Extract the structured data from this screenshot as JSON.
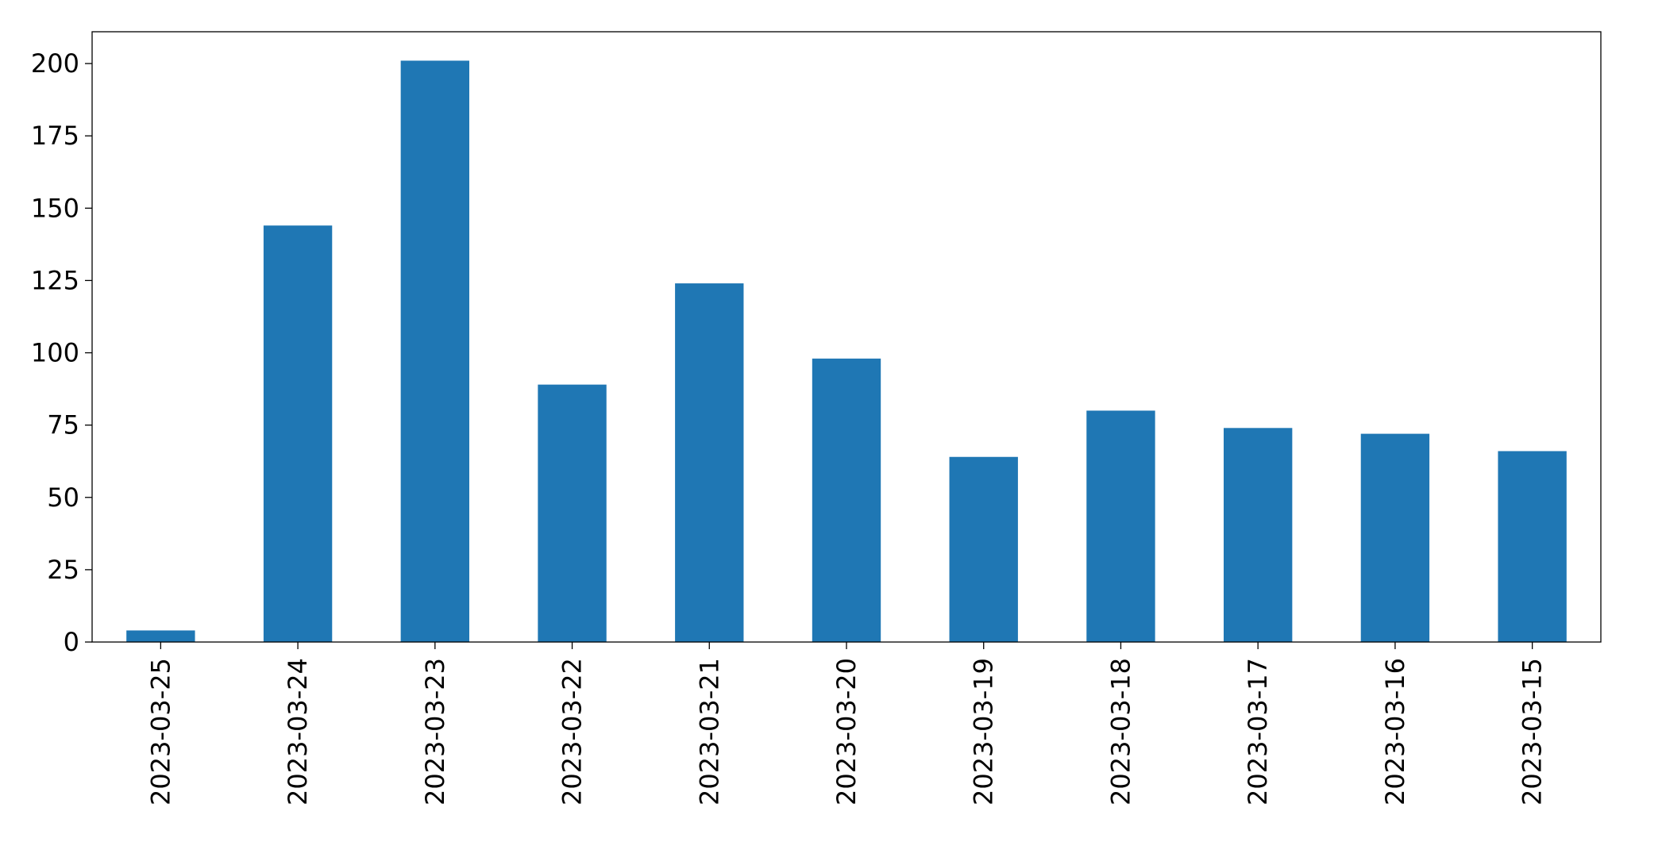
{
  "chart_data": {
    "type": "bar",
    "categories": [
      "2023-03-25",
      "2023-03-24",
      "2023-03-23",
      "2023-03-22",
      "2023-03-21",
      "2023-03-20",
      "2023-03-19",
      "2023-03-18",
      "2023-03-17",
      "2023-03-16",
      "2023-03-15"
    ],
    "values": [
      4,
      144,
      201,
      89,
      124,
      98,
      64,
      80,
      74,
      72,
      66
    ],
    "color": "#1f77b4",
    "ylim": [
      0,
      211
    ],
    "yticks": [
      0,
      25,
      50,
      75,
      100,
      125,
      150,
      175,
      200
    ],
    "grid": false
  }
}
